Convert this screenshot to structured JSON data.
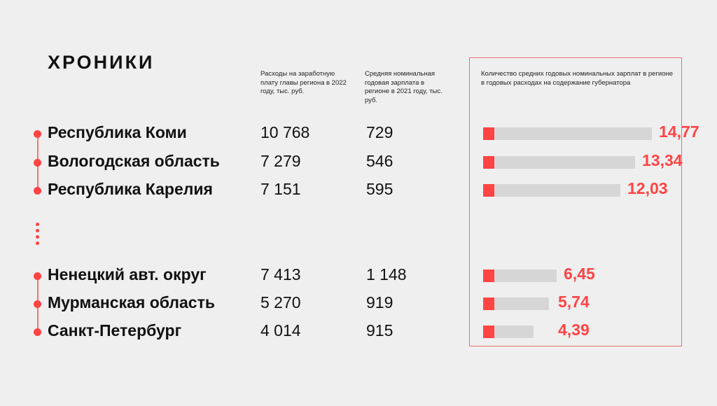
{
  "logo": "ХРОНИКИ",
  "headers": {
    "col1": "Расходы на заработную плату главы региона в 2022 году, тыс. руб.",
    "col2": "Средняя номинальная годовая зарплата в регионе в 2021 году, тыс. руб.",
    "col3": "Количество средних годовых номинальных зарплат в регионе в годовых расходах на содержание губернатора"
  },
  "colors": {
    "accent": "#ff4444",
    "bar": "#d6d6d6"
  },
  "rows": [
    {
      "name": "Республика Коми",
      "expense": "10 768",
      "salary": "729",
      "ratio_label": "14,77",
      "ratio": 14.77
    },
    {
      "name": "Вологодская область",
      "expense": "7 279",
      "salary": "546",
      "ratio_label": "13,34",
      "ratio": 13.34
    },
    {
      "name": "Республика Карелия",
      "expense": "7 151",
      "salary": "595",
      "ratio_label": "12,03",
      "ratio": 12.03
    },
    {
      "name": "Ненецкий авт. округ",
      "expense": "7 413",
      "salary": "1 148",
      "ratio_label": "6,45",
      "ratio": 6.45
    },
    {
      "name": "Мурманская область",
      "expense": "5 270",
      "salary": "919",
      "ratio_label": "5,74",
      "ratio": 5.74
    },
    {
      "name": "Санкт-Петербург",
      "expense": "4 014",
      "salary": "915",
      "ratio_label": "4,39",
      "ratio": 4.39
    }
  ]
}
